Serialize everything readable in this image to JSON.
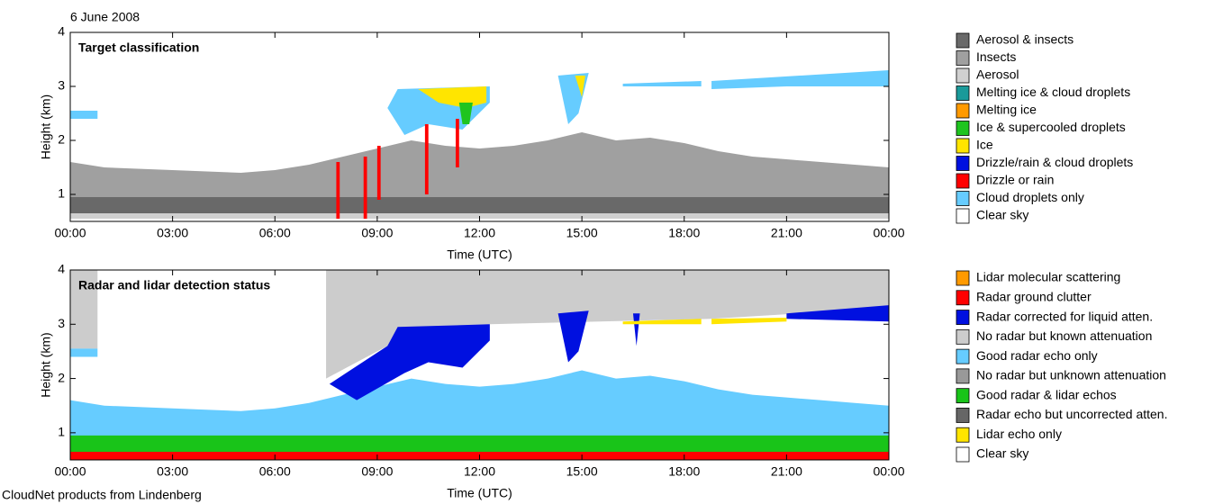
{
  "header": "6 June 2008",
  "footer": "CloudNet products from Lindenberg",
  "chart_data": [
    {
      "type": "classification",
      "title": "Target classification",
      "xlabel": "Time (UTC)",
      "ylabel": "Height (km)",
      "xlim": [
        0,
        24
      ],
      "ylim": [
        0.5,
        4
      ],
      "xticks": [
        {
          "value": 0,
          "label": "00:00"
        },
        {
          "value": 3,
          "label": "03:00"
        },
        {
          "value": 6,
          "label": "06:00"
        },
        {
          "value": 9,
          "label": "09:00"
        },
        {
          "value": 12,
          "label": "12:00"
        },
        {
          "value": 15,
          "label": "15:00"
        },
        {
          "value": 18,
          "label": "18:00"
        },
        {
          "value": 21,
          "label": "21:00"
        },
        {
          "value": 24,
          "label": "00:00"
        }
      ],
      "yticks": [
        1,
        2,
        3,
        4
      ],
      "legend": [
        {
          "name": "Aerosol & insects",
          "color": "#696969"
        },
        {
          "name": "Insects",
          "color": "#a0a0a0"
        },
        {
          "name": "Aerosol",
          "color": "#d0d0d0"
        },
        {
          "name": "Melting ice & cloud droplets",
          "color": "#1a9a9a"
        },
        {
          "name": "Melting ice",
          "color": "#ff9a00"
        },
        {
          "name": "Ice & supercooled droplets",
          "color": "#1fc41f"
        },
        {
          "name": "Ice",
          "color": "#ffe500"
        },
        {
          "name": "Drizzle/rain & cloud droplets",
          "color": "#0010e0"
        },
        {
          "name": "Drizzle or rain",
          "color": "#ff0000"
        },
        {
          "name": "Cloud droplets only",
          "color": "#66ccff"
        },
        {
          "name": "Clear sky",
          "color": "#ffffff"
        }
      ]
    },
    {
      "type": "detection",
      "title": "Radar and lidar detection status",
      "xlabel": "Time (UTC)",
      "ylabel": "Height (km)",
      "xlim": [
        0,
        24
      ],
      "ylim": [
        0.5,
        4
      ],
      "xticks": [
        {
          "value": 0,
          "label": "00:00"
        },
        {
          "value": 3,
          "label": "03:00"
        },
        {
          "value": 6,
          "label": "06:00"
        },
        {
          "value": 9,
          "label": "09:00"
        },
        {
          "value": 12,
          "label": "12:00"
        },
        {
          "value": 15,
          "label": "15:00"
        },
        {
          "value": 18,
          "label": "18:00"
        },
        {
          "value": 21,
          "label": "21:00"
        },
        {
          "value": 24,
          "label": "00:00"
        }
      ],
      "yticks": [
        1,
        2,
        3,
        4
      ],
      "legend": [
        {
          "name": "Lidar molecular scattering",
          "color": "#ff9a00"
        },
        {
          "name": "Radar ground clutter",
          "color": "#ff0000"
        },
        {
          "name": "Radar corrected for liquid atten.",
          "color": "#0010e0"
        },
        {
          "name": "No radar but known attenuation",
          "color": "#cccccc"
        },
        {
          "name": "Good radar echo only",
          "color": "#66ccff"
        },
        {
          "name": "No radar but unknown attenuation",
          "color": "#999999"
        },
        {
          "name": "Good radar & lidar echos",
          "color": "#19c419"
        },
        {
          "name": "Radar echo but uncorrected atten.",
          "color": "#666666"
        },
        {
          "name": "Lidar echo only",
          "color": "#ffe500"
        },
        {
          "name": "Clear sky",
          "color": "#ffffff"
        }
      ]
    }
  ]
}
